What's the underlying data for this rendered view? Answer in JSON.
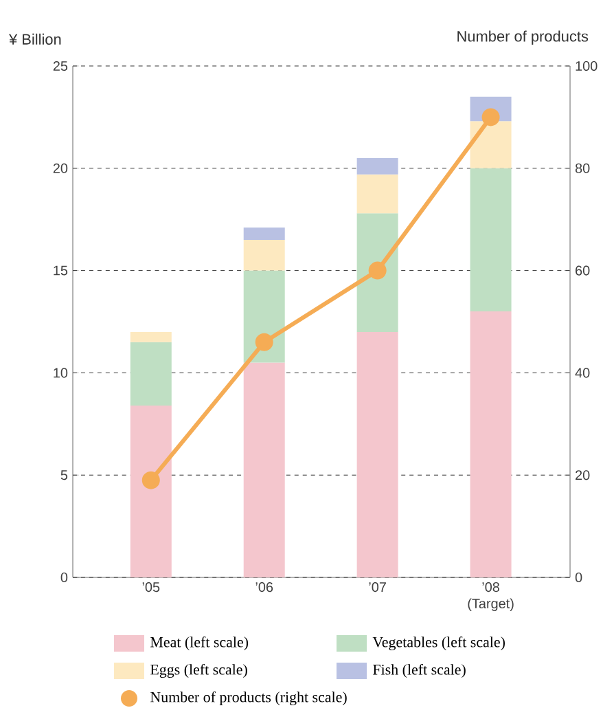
{
  "chart_data": {
    "type": "bar",
    "stacked": true,
    "ylabel": "¥ Billion",
    "y2label": "Number of products",
    "categories": [
      "’05",
      "’06",
      "’07",
      "’08 (Target)"
    ],
    "series": [
      {
        "name": "Meat (left scale)",
        "color": "#f4c6cd",
        "values": [
          8.4,
          10.5,
          12,
          13
        ]
      },
      {
        "name": "Vegetables (left scale)",
        "color": "#bfdfc3",
        "values": [
          3.1,
          4.5,
          5.8,
          7
        ]
      },
      {
        "name": "Eggs (left scale)",
        "color": "#fde9c0",
        "values": [
          0.5,
          1.5,
          1.9,
          2.3
        ]
      },
      {
        "name": "Fish (left scale)",
        "color": "#b9c1e3",
        "values": [
          null,
          0.6,
          0.8,
          1.2
        ]
      },
      {
        "name": "Number of products (right scale)",
        "type": "line",
        "axis": "y2",
        "color": "#f5ac55",
        "marker": "circle",
        "line_style": "solid",
        "values": [
          19,
          46,
          60,
          90
        ]
      }
    ],
    "ylim": [
      0,
      25
    ],
    "yticks": [
      0,
      5,
      10,
      15,
      20,
      25
    ],
    "y2lim": [
      0,
      100
    ],
    "y2ticks": [
      0,
      20,
      40,
      60,
      80,
      100
    ],
    "grid": "y",
    "legend": "bottom"
  }
}
